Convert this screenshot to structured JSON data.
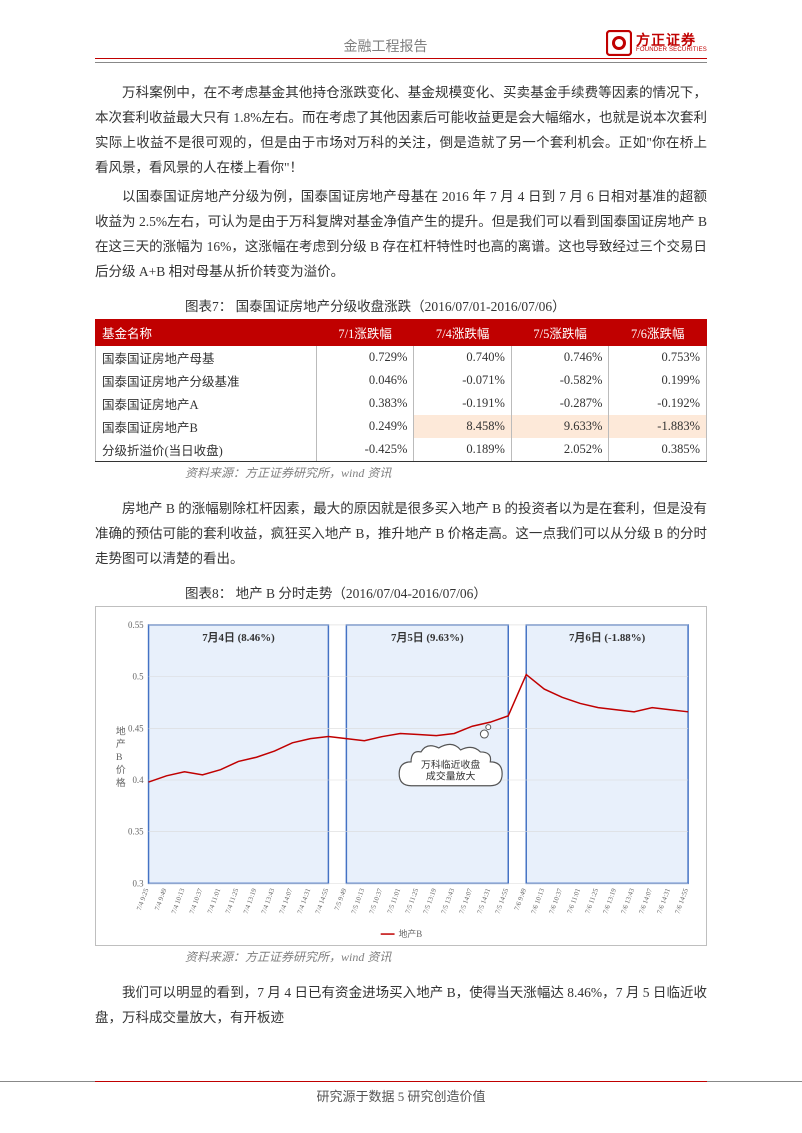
{
  "header": {
    "title": "金融工程报告",
    "logo_cn": "方正证券",
    "logo_en": "FOUNDER SECURITIES",
    "logo_color": "#c00000"
  },
  "para1": "万科案例中，在不考虑基金其他持仓涨跌变化、基金规模变化、买卖基金手续费等因素的情况下，本次套利收益最大只有 1.8%左右。而在考虑了其他因素后可能收益更是会大幅缩水，也就是说本次套利实际上收益不是很可观的，但是由于市场对万科的关注，倒是造就了另一个套利机会。正如\"你在桥上看风景，看风景的人在楼上看你\"！",
  "para2": "以国泰国证房地产分级为例，国泰国证房地产母基在 2016 年 7 月 4 日到 7 月 6 日相对基准的超额收益为 2.5%左右，可认为是由于万科复牌对基金净值产生的提升。但是我们可以看到国泰国证房地产 B 在这三天的涨幅为 16%，这涨幅在考虑到分级 B 存在杠杆特性时也高的离谱。这也导致经过三个交易日后分级 A+B 相对母基从折价转变为溢价。",
  "table7": {
    "caption": "图表7：  国泰国证房地产分级收盘涨跌（2016/07/01-2016/07/06）",
    "columns": [
      "基金名称",
      "7/1涨跌幅",
      "7/4涨跌幅",
      "7/5涨跌幅",
      "7/6涨跌幅"
    ],
    "rows": [
      [
        "国泰国证房地产母基",
        "0.729%",
        "0.740%",
        "0.746%",
        "0.753%"
      ],
      [
        "国泰国证房地产分级基准",
        "0.046%",
        "-0.071%",
        "-0.582%",
        "0.199%"
      ],
      [
        "国泰国证房地产A",
        "0.383%",
        "-0.191%",
        "-0.287%",
        "-0.192%"
      ],
      [
        "国泰国证房地产B",
        "0.249%",
        "8.458%",
        "9.633%",
        "-1.883%"
      ],
      [
        "分级折溢价(当日收盘)",
        "-0.425%",
        "0.189%",
        "2.052%",
        "0.385%"
      ]
    ],
    "highlight_cells": [
      [
        3,
        2
      ],
      [
        3,
        3
      ],
      [
        3,
        4
      ]
    ],
    "header_bg": "#c00000",
    "header_fg": "#ffffff",
    "highlight_bg": "#fde9d9",
    "source": "资料来源：方正证券研究所，wind 资讯"
  },
  "para3": "房地产 B 的涨幅剔除杠杆因素，最大的原因就是很多买入地产 B 的投资者以为是在套利，但是没有准确的预估可能的套利收益，疯狂买入地产 B，推升地产 B 价格走高。这一点我们可以从分级 B 的分时走势图可以清楚的看出。",
  "chart8": {
    "caption": "图表8：  地产 B 分时走势（2016/07/04-2016/07/06）",
    "type": "line",
    "ylabel": "地产B价格",
    "ylim": [
      0.3,
      0.55
    ],
    "ytick_step": 0.05,
    "yticks": [
      "0.3",
      "0.35",
      "0.4",
      "0.45",
      "0.5",
      "0.55"
    ],
    "xticks": [
      "7/4 9:25",
      "7/4 9:49",
      "7/4 10:13",
      "7/4 10:37",
      "7/4 11:01",
      "7/4 11:25",
      "7/4 13:19",
      "7/4 13:43",
      "7/4 14:07",
      "7/4 14:31",
      "7/4 14:55",
      "7/5 9:49",
      "7/5 10:13",
      "7/5 10:37",
      "7/5 11:01",
      "7/5 11:25",
      "7/5 13:19",
      "7/5 13:43",
      "7/5 14:07",
      "7/5 14:31",
      "7/5 14:55",
      "7/6 9:49",
      "7/6 10:13",
      "7/6 10:37",
      "7/6 11:01",
      "7/6 11:25",
      "7/6 13:19",
      "7/6 13:43",
      "7/6 14:07",
      "7/6 14:31",
      "7/6 14:55"
    ],
    "series_color": "#c00000",
    "series_name": "地产B",
    "data": [
      0.398,
      0.404,
      0.408,
      0.405,
      0.41,
      0.418,
      0.422,
      0.428,
      0.436,
      0.44,
      0.442,
      0.44,
      0.438,
      0.442,
      0.445,
      0.444,
      0.443,
      0.445,
      0.452,
      0.456,
      0.462,
      0.502,
      0.488,
      0.48,
      0.474,
      0.47,
      0.468,
      0.466,
      0.47,
      0.468,
      0.466
    ],
    "background_color": "#ffffff",
    "grid_color": "#d9d9d9",
    "region_fill": "#e8f0fb",
    "region_border": "#4472c4",
    "regions": [
      {
        "label": "7月4日 (8.46%)",
        "start_idx": 0,
        "end_idx": 10
      },
      {
        "label": "7月5日 (9.63%)",
        "start_idx": 11,
        "end_idx": 20
      },
      {
        "label": "7月6日 (-1.88%)",
        "start_idx": 21,
        "end_idx": 30
      }
    ],
    "callout": {
      "text_line1": "万科临近收盘",
      "text_line2": "成交量放大",
      "target_idx": 19
    },
    "source": "资料来源：方正证券研究所，wind 资讯"
  },
  "para4": "我们可以明显的看到，7 月 4 日已有资金进场买入地产 B，使得当天涨幅达 8.46%，7 月 5 日临近收盘，万科成交量放大，有开板迹",
  "footer": "研究源于数据 5 研究创造价值"
}
